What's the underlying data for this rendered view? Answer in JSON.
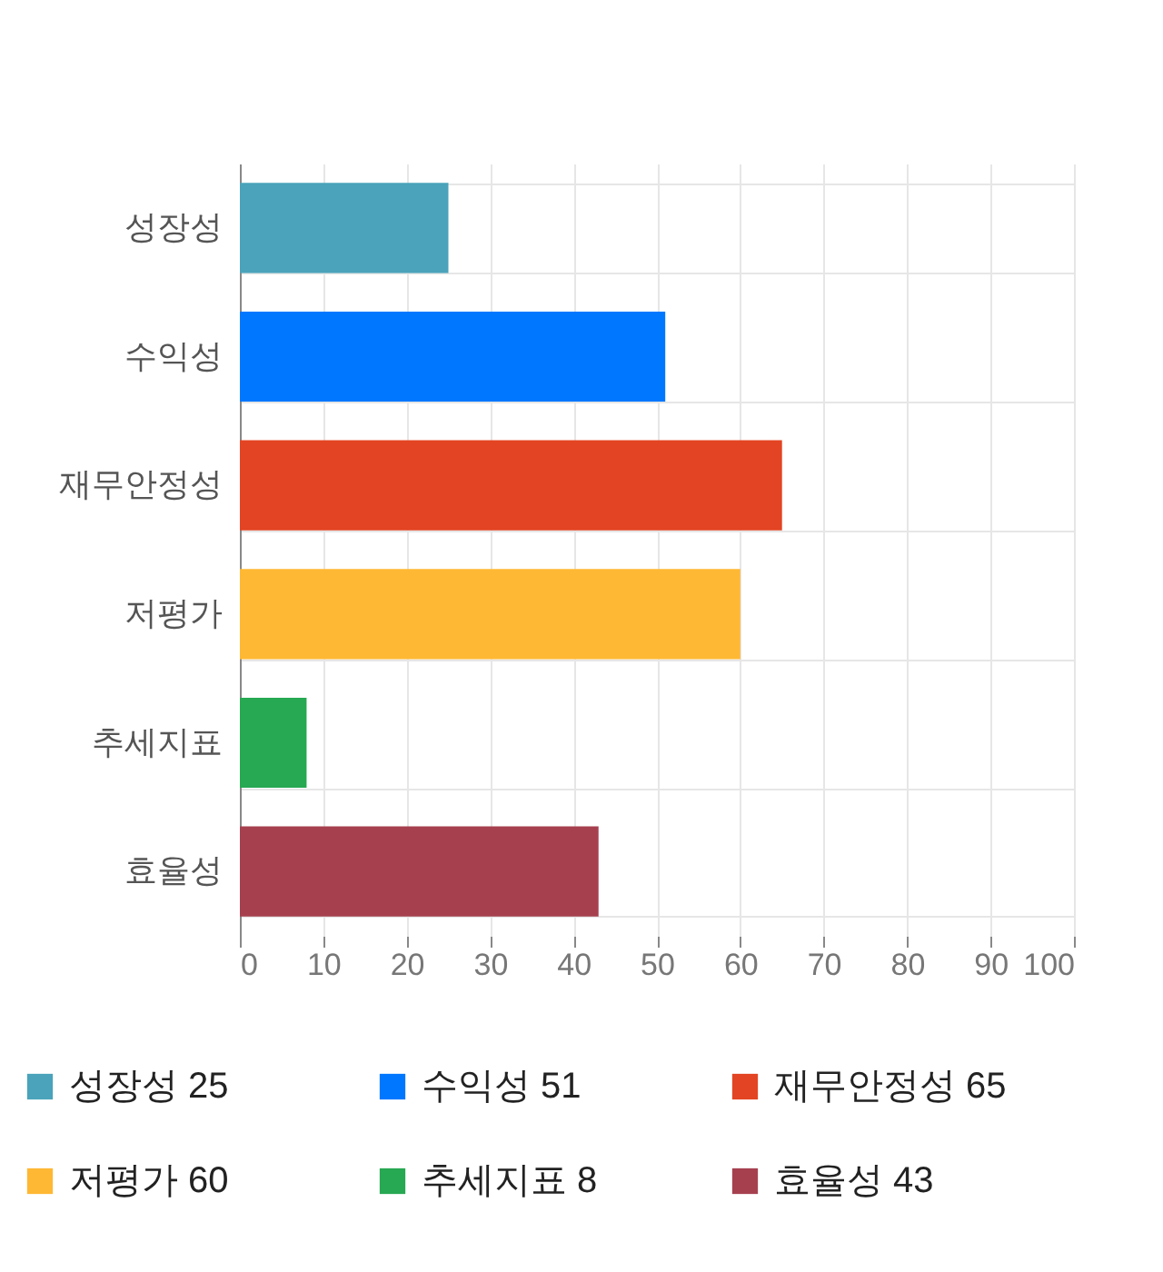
{
  "chart_data": {
    "type": "bar",
    "orientation": "horizontal",
    "stacked": true,
    "categories": [
      "성장성",
      "수익성",
      "재무안정성",
      "저평가",
      "추세지표",
      "효율성"
    ],
    "series": [
      {
        "name": "성장성 25",
        "color": "#4aa3ba",
        "values": [
          25,
          null,
          null,
          null,
          null,
          null
        ]
      },
      {
        "name": "수익성 51",
        "color": "#0077ff",
        "values": [
          null,
          51,
          null,
          null,
          null,
          null
        ]
      },
      {
        "name": "재무안정성 65",
        "color": "#e34423",
        "values": [
          null,
          null,
          65,
          null,
          null,
          null
        ]
      },
      {
        "name": "저평가 60",
        "color": "#ffb833",
        "values": [
          null,
          null,
          null,
          60,
          null,
          null
        ]
      },
      {
        "name": "추세지표 8",
        "color": "#27a853",
        "values": [
          null,
          null,
          null,
          null,
          8,
          null
        ]
      },
      {
        "name": "효율성 43",
        "color": "#a6404f",
        "values": [
          null,
          null,
          null,
          null,
          null,
          43
        ]
      }
    ],
    "xlim": [
      0,
      100
    ],
    "xticks": [
      0,
      10,
      20,
      30,
      40,
      50,
      60,
      70,
      80,
      90,
      100
    ],
    "grid": true,
    "legend": "bottom"
  }
}
